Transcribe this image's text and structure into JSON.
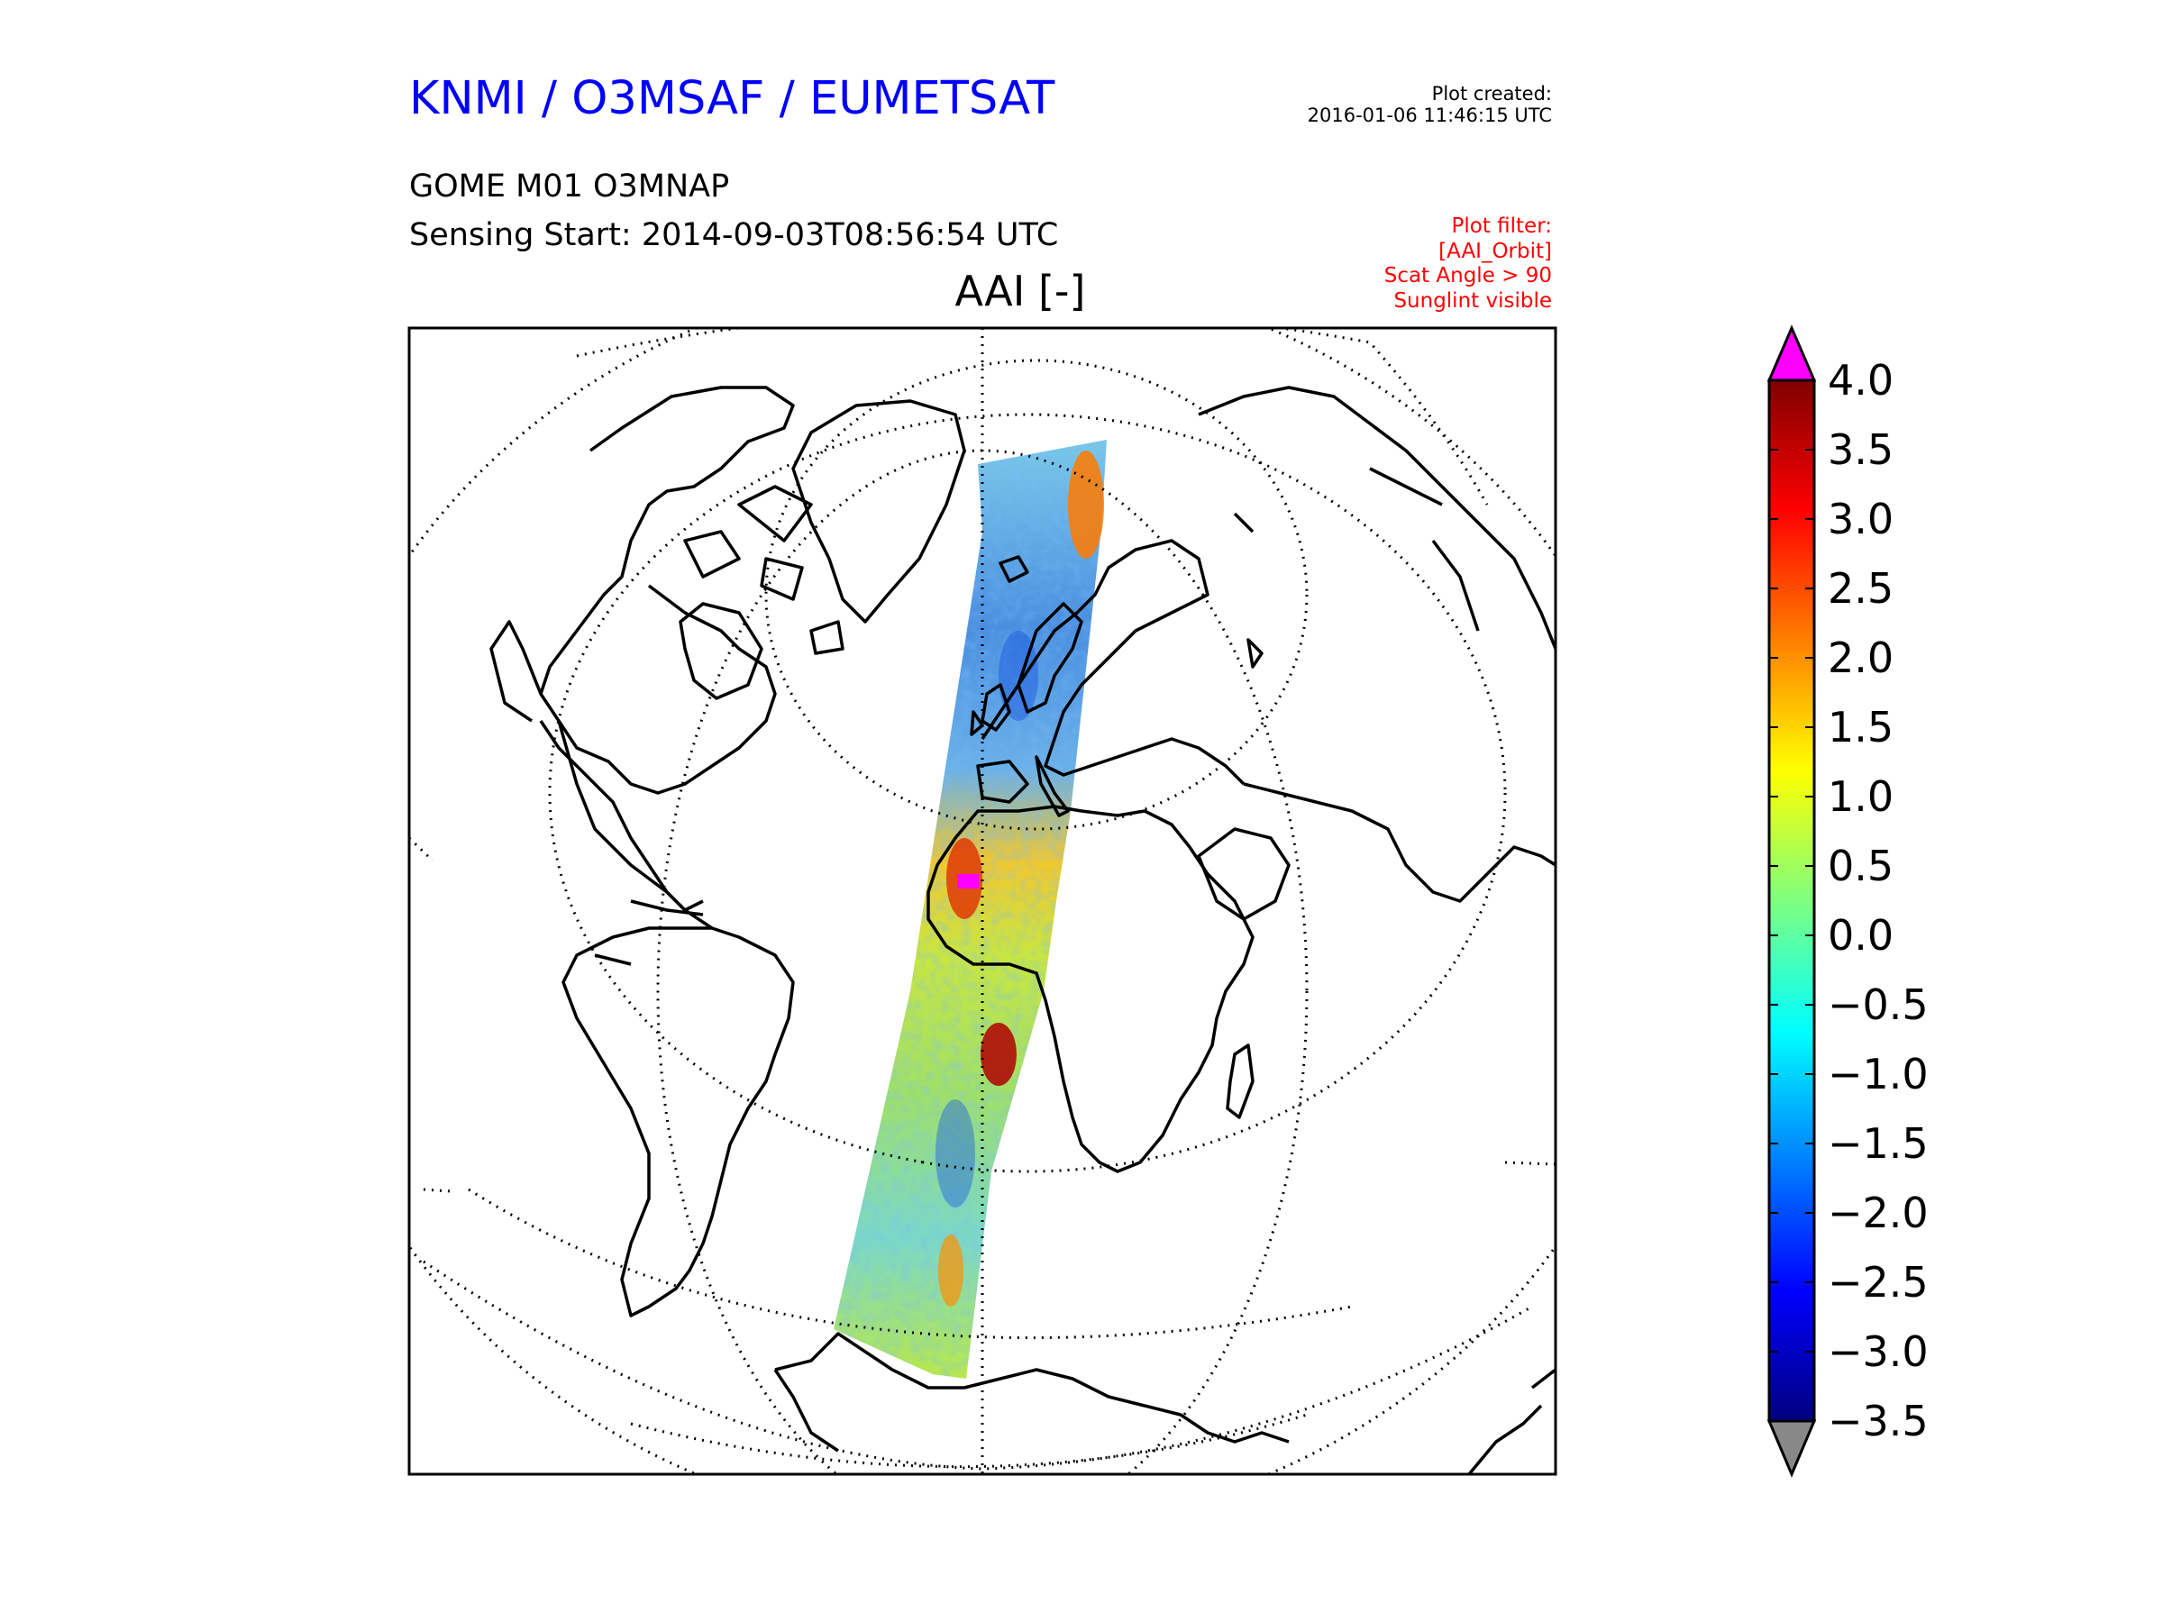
{
  "header": {
    "organization": "KNMI / O3MSAF / EUMETSAT",
    "created_label": "Plot created:",
    "created_time": "2016-01-06 11:46:15 UTC",
    "product": "GOME M01 O3MNAP",
    "sensing_start": "Sensing Start: 2014-09-03T08:56:54 UTC",
    "filter_lines": [
      "Plot filter:",
      "[AAI_Orbit]",
      "Scat Angle > 90",
      "Sunglint visible"
    ]
  },
  "map": {
    "title": "AAI [-]",
    "projection": "orthographic (Atlantic-centred)",
    "graticule": "dotted",
    "colors": {
      "coastline": "#000000",
      "frame": "#000000",
      "over_max": "#ff00ff",
      "under_min": "#888888"
    }
  },
  "colorbar": {
    "colormap": "jet",
    "min": -3.5,
    "max": 4.0,
    "ticks": [
      "4.0",
      "3.5",
      "3.0",
      "2.5",
      "2.0",
      "1.5",
      "1.0",
      "0.5",
      "0.0",
      "−0.5",
      "−1.0",
      "−1.5",
      "−2.0",
      "−2.5",
      "−3.0",
      "−3.5"
    ],
    "extend": "both"
  }
}
